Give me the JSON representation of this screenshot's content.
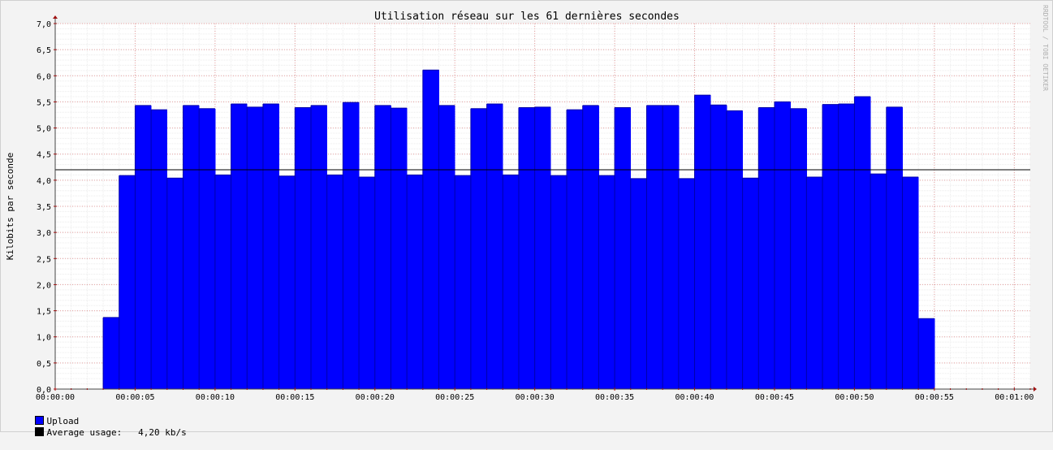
{
  "chart_data": {
    "type": "bar",
    "title": "Utilisation réseau sur les 61 dernières secondes",
    "ylabel": "Kilobits par seconde",
    "xlabel": "",
    "watermark": "RRDTOOL / TOBI OETIKER",
    "ylim": [
      0,
      7
    ],
    "xlim": [
      0,
      61
    ],
    "y_ticks": [
      "0,0",
      "0,5",
      "1,0",
      "1,5",
      "2,0",
      "2,5",
      "3,0",
      "3,5",
      "4,0",
      "4,5",
      "5,0",
      "5,5",
      "6,0",
      "6,5",
      "7,0"
    ],
    "x_ticks": [
      "00:00:00",
      "00:00:05",
      "00:00:10",
      "00:00:15",
      "00:00:20",
      "00:00:25",
      "00:00:30",
      "00:00:35",
      "00:00:40",
      "00:00:45",
      "00:00:50",
      "00:00:55",
      "00:01:00"
    ],
    "grid": true,
    "series": [
      {
        "name": "Upload",
        "color": "#0000ff",
        "start": 3,
        "values": [
          1.37,
          4.09,
          5.43,
          5.35,
          4.04,
          5.43,
          5.37,
          4.1,
          5.46,
          5.4,
          5.46,
          4.08,
          5.39,
          5.43,
          4.1,
          5.49,
          4.06,
          5.43,
          5.38,
          4.1,
          6.11,
          5.43,
          4.09,
          5.37,
          5.46,
          4.1,
          5.39,
          5.4,
          4.09,
          5.35,
          5.43,
          4.09,
          5.39,
          4.03,
          5.43,
          5.43,
          4.03,
          5.63,
          5.44,
          5.33,
          4.04,
          5.39,
          5.5,
          5.37,
          4.06,
          5.45,
          5.46,
          5.6,
          4.12,
          5.4,
          4.06,
          1.35
        ]
      }
    ],
    "average": {
      "value": 4.2,
      "color": "#000000"
    }
  },
  "legend": {
    "items": [
      {
        "label": "Upload",
        "color": "#0000ff"
      },
      {
        "label": "Average usage:   4,20 kb/s",
        "color": "#000000"
      }
    ]
  }
}
